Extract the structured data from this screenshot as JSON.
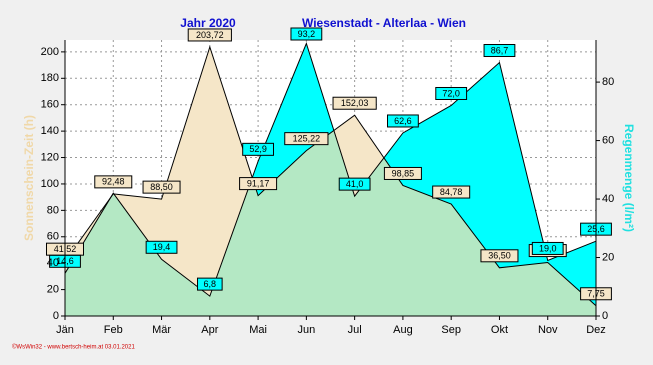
{
  "chart_data": {
    "type": "area",
    "title_left": "Jahr  2020",
    "title_right": "Wiesenstadt - Alterlaa - Wien",
    "y_label": "Sonnenschein-Zeit  (h)",
    "y2_label": "Regenmenge  (l/m²)",
    "footer": "©WsWin32 - www.bertsch-heim.at  03.01.2021",
    "categories": [
      "Jän",
      "Feb",
      "Mär",
      "Apr",
      "Mai",
      "Jun",
      "Jul",
      "Aug",
      "Sep",
      "Okt",
      "Nov",
      "Dez"
    ],
    "series": [
      {
        "name": "Sonnenschein-Zeit",
        "color": "#f5e6c8",
        "values": [
          41.52,
          92.48,
          88.5,
          203.72,
          91.17,
          125.22,
          152.03,
          98.85,
          84.78,
          36.5,
          40.47,
          7.75
        ],
        "value_labels": [
          "41,52",
          "92,48",
          "88,50",
          "203,72",
          "91,17",
          "125,22",
          "152,03",
          "98,85",
          "84,78",
          "36,50",
          "40,47",
          "7,75"
        ]
      },
      {
        "name": "Regenmenge",
        "color": "#00ffff",
        "axis": "y2",
        "values": [
          14.6,
          42,
          19.4,
          6.8,
          52.9,
          93.2,
          41.0,
          62.6,
          72.0,
          86.7,
          19.0,
          25.6
        ],
        "value_labels": [
          "14,6",
          null,
          "19,4",
          "6,8",
          "52,9",
          "93,2",
          "41,0",
          "62,6",
          "72,0",
          "86,7",
          "19,0",
          "25,6"
        ]
      }
    ],
    "overlap_color": "#b4e8c4",
    "ylim": [
      0,
      209
    ],
    "yticks": [
      0,
      20,
      40,
      60,
      80,
      100,
      120,
      140,
      160,
      180,
      200
    ],
    "y2lim": [
      0,
      94.4
    ],
    "y2ticks": [
      0,
      20,
      40,
      60,
      80
    ],
    "grid": true
  }
}
